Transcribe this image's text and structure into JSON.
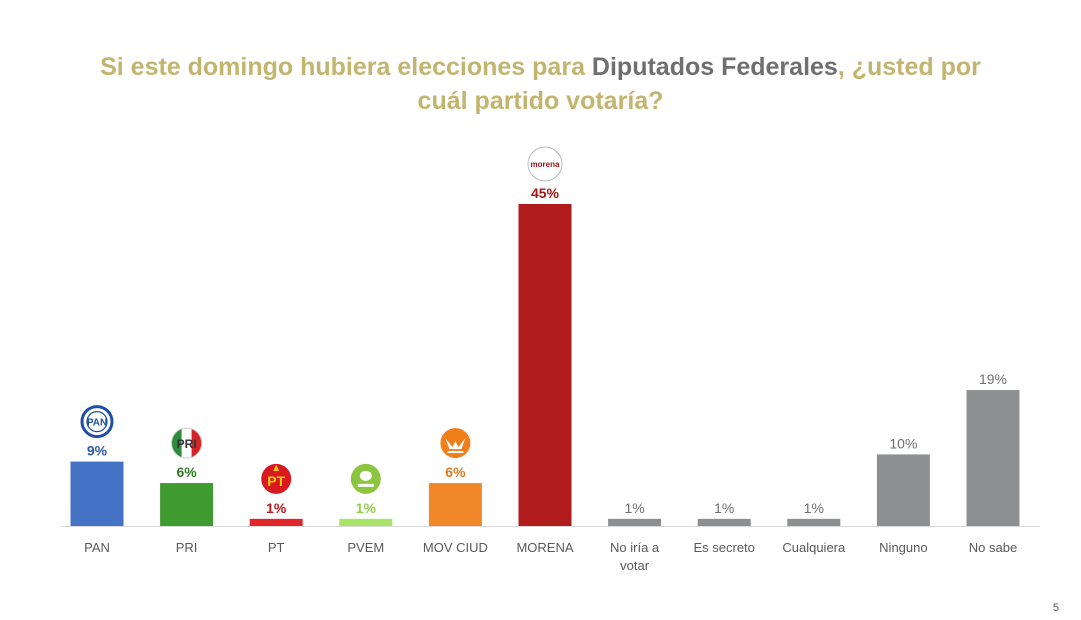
{
  "title": {
    "part1": "Si este domingo hubiera elecciones para ",
    "highlight": "Diputados Federales",
    "part2": ", ¿usted por",
    "line2": "cuál partido votaría?"
  },
  "page_number": "5",
  "chart_data": {
    "type": "bar",
    "title": "Si este domingo hubiera elecciones para Diputados Federales, ¿usted por cuál partido votaría?",
    "categories": [
      "PAN",
      "PRI",
      "PT",
      "PVEM",
      "MOV CIUD",
      "MORENA",
      "No iría a votar",
      "Es secreto",
      "Cualquiera",
      "Ninguno",
      "No sabe"
    ],
    "values": [
      9,
      6,
      1,
      1,
      6,
      45,
      1,
      1,
      1,
      10,
      19
    ],
    "value_labels": [
      "9%",
      "6%",
      "1%",
      "1%",
      "6%",
      "45%",
      "1%",
      "1%",
      "1%",
      "10%",
      "19%"
    ],
    "unit": "%",
    "colors": [
      "#4472c4",
      "#3f9a2f",
      "#e0262a",
      "#a9e36a",
      "#f0882a",
      "#b01b1b",
      "#8c9090",
      "#8c9090",
      "#8c9090",
      "#8c9090",
      "#8c9090"
    ],
    "label_colors": [
      "#2e5aa8",
      "#2e7d22",
      "#c0171b",
      "#8fd04a",
      "#e07a1f",
      "#a01818",
      "#6e6e6e",
      "#6e6e6e",
      "#6e6e6e",
      "#6e6e6e",
      "#6e6e6e"
    ],
    "logos": [
      "PAN",
      "PRI",
      "PT",
      "PVEM",
      "MC",
      "morena",
      "",
      "",
      "",
      "",
      ""
    ],
    "ylim": [
      0,
      45
    ],
    "grid": false,
    "legend": "none"
  }
}
